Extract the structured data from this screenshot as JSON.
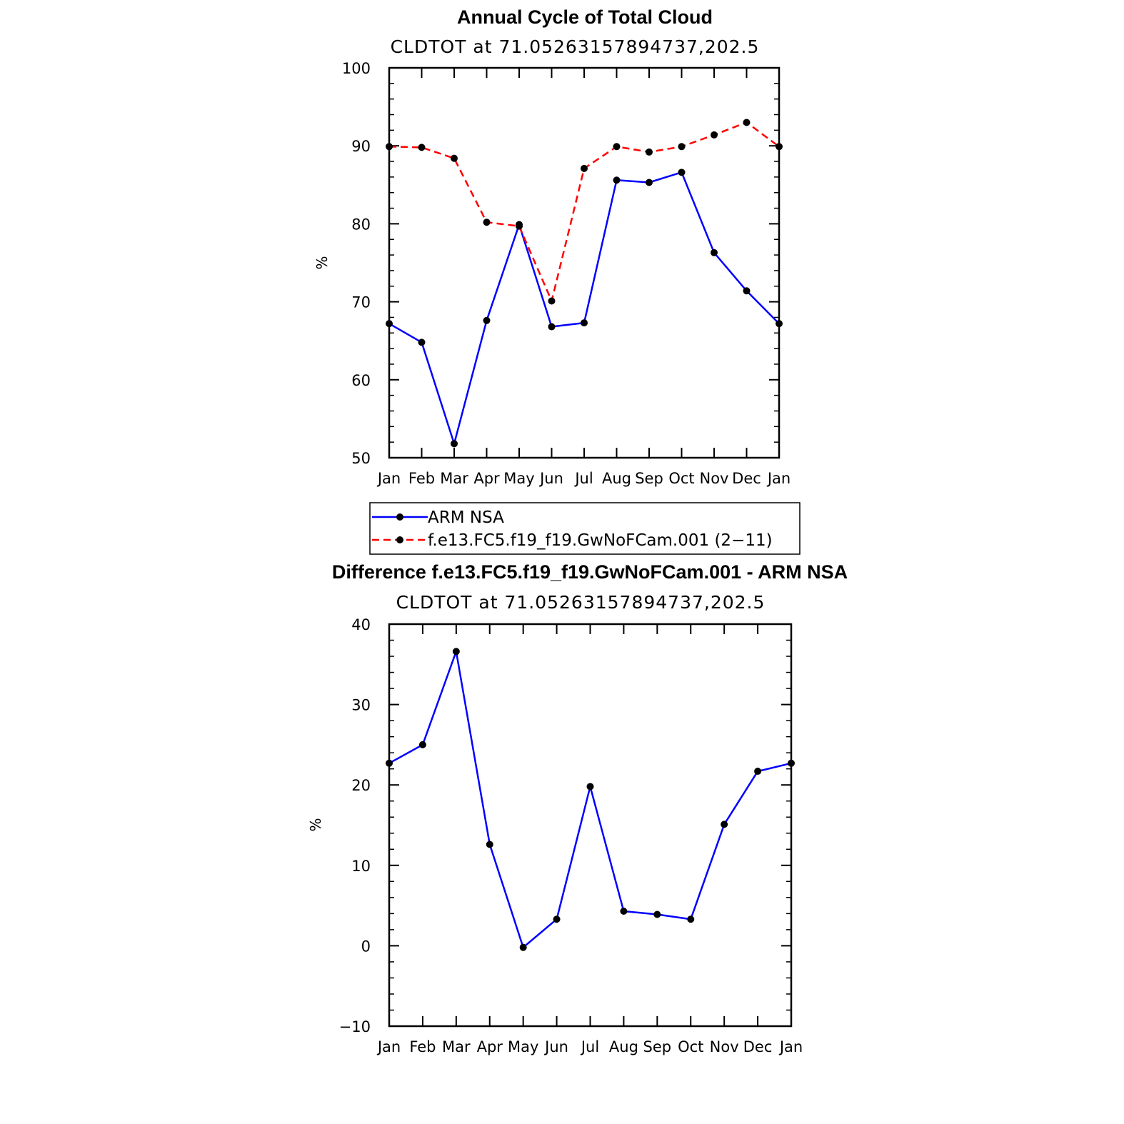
{
  "charts": [
    {
      "title": "Annual Cycle of Total Cloud",
      "subtitle": "CLDTOT at 71.05263157894737,202.5",
      "ylabel": "%"
    },
    {
      "title": "Difference f.e13.FC5.f19_f19.GwNoFCam.001 - ARM NSA",
      "subtitle": "CLDTOT at 71.05263157894737,202.5",
      "ylabel": "%"
    }
  ],
  "legend": [
    {
      "label": "ARM NSA",
      "color": "#0000ff",
      "style": "solid"
    },
    {
      "label": "f.e13.FC5.f19_f19.GwNoFCam.001 (2−11)",
      "color": "#ff0000",
      "style": "dashed"
    }
  ],
  "chart_data": [
    {
      "type": "line",
      "title": "Annual Cycle of Total Cloud",
      "subtitle": "CLDTOT at 71.05263157894737,202.5",
      "xlabel": "",
      "ylabel": "%",
      "categories": [
        "Jan",
        "Feb",
        "Mar",
        "Apr",
        "May",
        "Jun",
        "Jul",
        "Aug",
        "Sep",
        "Oct",
        "Nov",
        "Dec",
        "Jan"
      ],
      "ylim": [
        50,
        100
      ],
      "yticks": [
        50,
        60,
        70,
        80,
        90,
        100
      ],
      "grid": false,
      "legend_position": "below",
      "series": [
        {
          "name": "ARM NSA",
          "color": "#0000ff",
          "style": "solid",
          "values": [
            67.2,
            64.8,
            51.8,
            67.6,
            79.9,
            66.8,
            67.3,
            85.6,
            85.3,
            86.6,
            76.3,
            71.4,
            67.2
          ]
        },
        {
          "name": "f.e13.FC5.f19_f19.GwNoFCam.001 (2−11)",
          "color": "#ff0000",
          "style": "dashed",
          "values": [
            89.9,
            89.8,
            88.4,
            80.2,
            79.7,
            70.1,
            87.1,
            89.9,
            89.2,
            89.9,
            91.4,
            93.0,
            89.9
          ]
        }
      ]
    },
    {
      "type": "line",
      "title": "Difference f.e13.FC5.f19_f19.GwNoFCam.001 - ARM NSA",
      "subtitle": "CLDTOT at 71.05263157894737,202.5",
      "xlabel": "",
      "ylabel": "%",
      "categories": [
        "Jan",
        "Feb",
        "Mar",
        "Apr",
        "May",
        "Jun",
        "Jul",
        "Aug",
        "Sep",
        "Oct",
        "Nov",
        "Dec",
        "Jan"
      ],
      "ylim": [
        -10,
        40
      ],
      "yticks": [
        -10,
        0,
        10,
        20,
        30,
        40
      ],
      "ytick_labels": [
        "−10",
        "0",
        "10",
        "20",
        "30",
        "40"
      ],
      "grid": false,
      "series": [
        {
          "color": "#0000ff",
          "style": "solid",
          "values": [
            22.7,
            25.0,
            36.6,
            12.6,
            -0.2,
            3.3,
            19.8,
            4.3,
            3.9,
            3.3,
            15.1,
            21.7,
            22.7
          ]
        }
      ]
    }
  ]
}
